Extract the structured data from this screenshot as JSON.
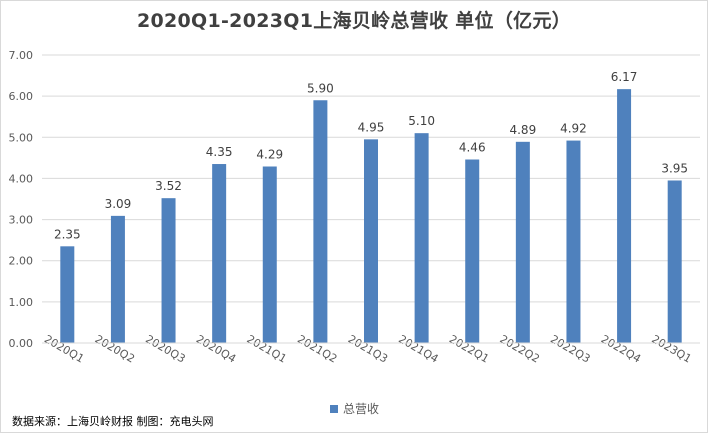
{
  "chart_data": {
    "type": "bar",
    "title": "2020Q1-2023Q1上海贝岭总营收 单位（亿元）",
    "categories": [
      "2020Q1",
      "2020Q2",
      "2020Q3",
      "2020Q4",
      "2021Q1",
      "2021Q2",
      "2021Q3",
      "2021Q4",
      "2022Q1",
      "2022Q2",
      "2022Q3",
      "2022Q4",
      "2023Q1"
    ],
    "series": [
      {
        "name": "总营收",
        "values": [
          2.35,
          3.09,
          3.52,
          4.35,
          4.29,
          5.9,
          4.95,
          5.1,
          4.46,
          4.89,
          4.92,
          6.17,
          3.95
        ]
      }
    ],
    "data_labels": [
      "2.35",
      "3.09",
      "3.52",
      "4.35",
      "4.29",
      "5.90",
      "4.95",
      "5.10",
      "4.46",
      "4.89",
      "4.92",
      "6.17",
      "3.95"
    ],
    "y_ticks": [
      "0.00",
      "1.00",
      "2.00",
      "3.00",
      "4.00",
      "5.00",
      "6.00",
      "7.00"
    ],
    "ylim": [
      0,
      7
    ],
    "grid": true,
    "legend": "bottom-center",
    "bar_color": "#4f81bd",
    "grid_color": "#d9d9d9",
    "source": "数据来源：上海贝岭财报 制图：充电头网"
  }
}
